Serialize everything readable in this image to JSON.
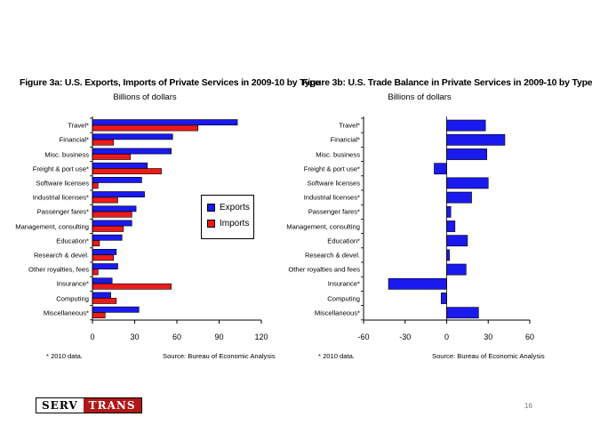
{
  "slide": {
    "logo_left": "SERV",
    "logo_right": "TRANS",
    "page_number": "16"
  },
  "colors": {
    "exports": "#1a1aee",
    "imports": "#ee1a1a",
    "balance": "#1a1aee"
  },
  "chart_data": [
    {
      "type": "bar",
      "orientation": "horizontal",
      "title": "Figure 3a: U.S. Exports, Imports of Private Services in 2009-10 by Type",
      "subtitle": "Billions of dollars",
      "categories": [
        "Travel*",
        "Financial*",
        "Misc. business",
        "Freight & port use*",
        "Software licenses",
        "Industrial licenses*",
        "Passenger fares*",
        "Management, consulting",
        "Education*",
        "Research & devel.",
        "Other royalties, fees",
        "Insurance*",
        "Computing",
        "Miscellaneous*"
      ],
      "series": [
        {
          "name": "Exports",
          "values": [
            103,
            57,
            56,
            39,
            35,
            37,
            31,
            28,
            21,
            17,
            18,
            14,
            13,
            33
          ]
        },
        {
          "name": "Imports",
          "values": [
            75,
            15,
            27,
            49,
            4,
            18,
            28,
            22,
            5,
            15,
            4,
            56,
            17,
            9
          ]
        }
      ],
      "xlim": [
        0,
        120
      ],
      "xticks": [
        "0",
        "30",
        "60",
        "90",
        "120"
      ],
      "legend": "right-center",
      "note": "* 2010 data.",
      "source": "Source: Bureau of Economic Analysis"
    },
    {
      "type": "bar",
      "orientation": "horizontal",
      "title": "Figure 3b: U.S. Trade Balance in Private Services in 2009-10 by Type",
      "subtitle": "Billions of dollars",
      "categories": [
        "Travel*",
        "Financial*",
        "Misc. business",
        "Freight & port use*",
        "Software licenses",
        "Industrial licenses*",
        "Passenger fares*",
        "Management, consulting",
        "Education*",
        "Research & devel.",
        "Other royalties and fees",
        "Insurance*",
        "Computing",
        "Miscellaneous*"
      ],
      "series": [
        {
          "name": "",
          "values": [
            28,
            42,
            29,
            -9,
            30,
            18,
            3,
            6,
            15,
            2,
            14,
            -42,
            -4,
            23
          ]
        }
      ],
      "xlim": [
        -60,
        60
      ],
      "xticks": [
        "-60",
        "-30",
        "0",
        "30",
        "60"
      ],
      "note": "* 2010 data.",
      "source": "Source: Bureau of Economic Analysis"
    }
  ]
}
